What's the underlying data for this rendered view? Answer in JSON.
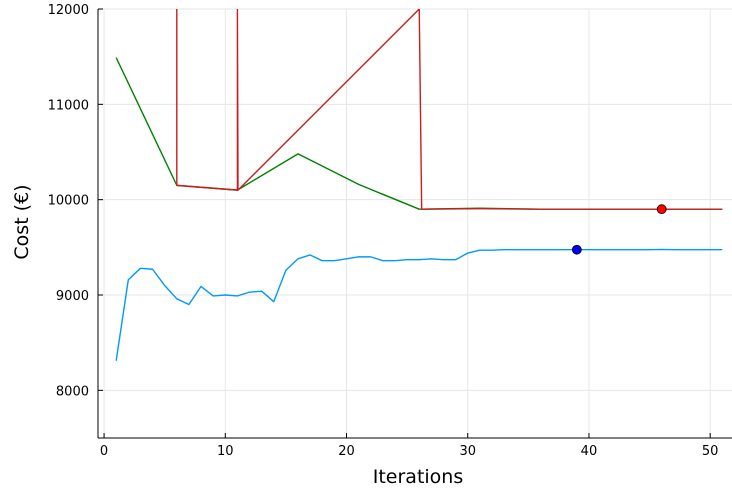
{
  "chart_data": {
    "type": "line",
    "xlabel": "Iterations",
    "ylabel": "Cost (€)",
    "xlim": [
      -0.5,
      51.8
    ],
    "ylim": [
      7500,
      12000
    ],
    "xticks": [
      0,
      10,
      20,
      30,
      40,
      50
    ],
    "yticks": [
      8000,
      9000,
      10000,
      11000,
      12000
    ],
    "grid": true,
    "legend": "none",
    "series": [
      {
        "color": "#009af9",
        "x": [
          1,
          2,
          3,
          4,
          5,
          6,
          7,
          8,
          9,
          10,
          11,
          12,
          13,
          14,
          15,
          16,
          17,
          18,
          19,
          20,
          21,
          22,
          23,
          24,
          25,
          26,
          27,
          28,
          29,
          30,
          31,
          32,
          33,
          34,
          35,
          36,
          37,
          38,
          39,
          40,
          41,
          42,
          43,
          44,
          45,
          46,
          47,
          48,
          49,
          50,
          51
        ],
        "y": [
          8310,
          9160,
          9280,
          9270,
          9100,
          8960,
          8900,
          9090,
          8990,
          9000,
          8990,
          9030,
          9040,
          8930,
          9260,
          9380,
          9420,
          9360,
          9360,
          9380,
          9400,
          9400,
          9360,
          9360,
          9370,
          9370,
          9380,
          9370,
          9370,
          9440,
          9470,
          9470,
          9475,
          9475,
          9475,
          9475,
          9475,
          9475,
          9475,
          9475,
          9475,
          9475,
          9475,
          9475,
          9475,
          9478,
          9475,
          9475,
          9475,
          9475,
          9475
        ]
      },
      {
        "color": "#008000",
        "x": [
          1,
          6,
          11,
          16,
          21,
          26,
          31,
          36,
          41,
          46,
          51
        ],
        "y": [
          11490,
          10150,
          10100,
          10480,
          10160,
          9900,
          9910,
          9900,
          9900,
          9900,
          9900
        ]
      },
      {
        "color": "#c81e1e",
        "x": [
          6,
          6,
          11,
          11,
          11.05,
          26,
          26.2,
          31,
          36,
          41,
          46,
          51
        ],
        "y": [
          12000,
          10150,
          10100,
          12000,
          10100,
          12000,
          9900,
          9905,
          9900,
          9900,
          9900,
          9900
        ]
      }
    ],
    "markers": [
      {
        "x": 39,
        "y": 9475,
        "color": "#0000ff"
      },
      {
        "x": 46,
        "y": 9900,
        "color": "#ff0000"
      }
    ]
  }
}
